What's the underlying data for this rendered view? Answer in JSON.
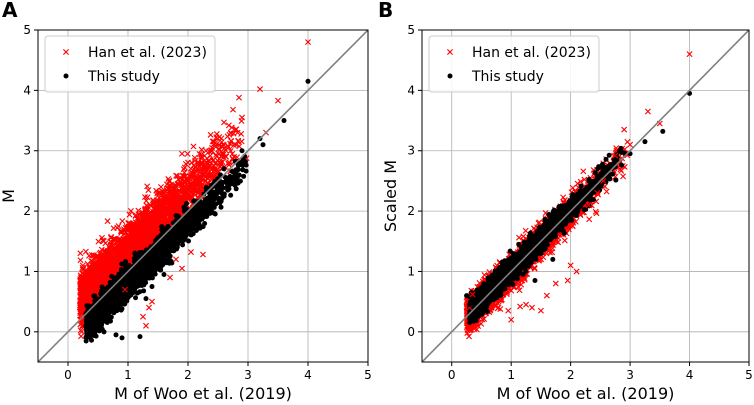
{
  "figure": {
    "panels": [
      "A",
      "B"
    ]
  },
  "chart_data": [
    {
      "panel": "A",
      "type": "scatter",
      "xlabel": "M of Woo et al. (2019)",
      "ylabel": "M",
      "xlim": [
        -0.5,
        5
      ],
      "ylim": [
        -0.5,
        5
      ],
      "xticks": [
        "0",
        "1",
        "2",
        "3",
        "4",
        "5"
      ],
      "yticks": [
        "0",
        "1",
        "2",
        "3",
        "4",
        "5"
      ],
      "grid": true,
      "reference_line": {
        "label": "1:1",
        "x": [
          -0.5,
          5
        ],
        "y": [
          -0.5,
          5
        ],
        "color": "#7f7f7f"
      },
      "legend": {
        "placement": "top-left",
        "entries": [
          "Han et al. (2023)",
          "This study"
        ]
      },
      "series": [
        {
          "name": "Han et al. (2023)",
          "marker": "x",
          "color": "#ff0000",
          "relation": {
            "slope": 1.0,
            "intercept": 0.35,
            "x_range": [
              0.2,
              3.0
            ],
            "scatter": 0.22
          },
          "points": [
            [
              4.0,
              4.8
            ],
            [
              3.2,
              4.02
            ],
            [
              3.5,
              3.83
            ],
            [
              2.85,
              3.88
            ],
            [
              2.75,
              3.68
            ],
            [
              2.9,
              3.55
            ],
            [
              3.3,
              3.3
            ],
            [
              2.6,
              3.47
            ],
            [
              2.3,
              3.0
            ],
            [
              1.9,
              2.95
            ],
            [
              1.55,
              2.4
            ],
            [
              1.8,
              1.2
            ],
            [
              1.9,
              1.05
            ],
            [
              2.05,
              1.32
            ],
            [
              2.25,
              1.28
            ],
            [
              1.7,
              0.9
            ],
            [
              1.35,
              0.4
            ],
            [
              1.25,
              0.25
            ],
            [
              1.3,
              0.1
            ],
            [
              1.4,
              0.5
            ],
            [
              0.95,
              0.7
            ],
            [
              0.25,
              0.68
            ],
            [
              0.2,
              0.52
            ]
          ]
        },
        {
          "name": "This study",
          "marker": "o",
          "color": "#000000",
          "relation": {
            "slope": 1.0,
            "intercept": -0.2,
            "x_range": [
              0.3,
              3.05
            ],
            "scatter": 0.12
          },
          "points": [
            [
              4.0,
              4.15
            ],
            [
              3.6,
              3.5
            ],
            [
              3.2,
              3.2
            ],
            [
              3.25,
              3.1
            ],
            [
              2.9,
              3.0
            ],
            [
              0.5,
              0.15
            ],
            [
              0.6,
              0.0
            ],
            [
              0.8,
              -0.05
            ],
            [
              0.9,
              -0.1
            ],
            [
              1.2,
              -0.08
            ],
            [
              1.3,
              0.55
            ],
            [
              1.6,
              0.95
            ],
            [
              1.4,
              0.75
            ],
            [
              0.4,
              0.2
            ]
          ]
        }
      ]
    },
    {
      "panel": "B",
      "type": "scatter",
      "xlabel": "M of Woo et al. (2019)",
      "ylabel": "Scaled M",
      "xlim": [
        -0.5,
        5
      ],
      "ylim": [
        -0.5,
        5
      ],
      "xticks": [
        "0",
        "1",
        "2",
        "3",
        "4",
        "5"
      ],
      "yticks": [
        "0",
        "1",
        "2",
        "3",
        "4",
        "5"
      ],
      "grid": true,
      "reference_line": {
        "label": "1:1",
        "x": [
          -0.5,
          5
        ],
        "y": [
          -0.5,
          5
        ],
        "color": "#7f7f7f"
      },
      "legend": {
        "placement": "top-left",
        "entries": [
          "Han et al. (2023)",
          "This study"
        ]
      },
      "series": [
        {
          "name": "Han et al. (2023)",
          "marker": "x",
          "color": "#ff0000",
          "relation": {
            "slope": 1.0,
            "intercept": 0.0,
            "x_range": [
              0.25,
              3.0
            ],
            "scatter": 0.14
          },
          "points": [
            [
              4.0,
              4.6
            ],
            [
              3.3,
              3.65
            ],
            [
              3.5,
              3.45
            ],
            [
              3.0,
              3.1
            ],
            [
              2.9,
              3.35
            ],
            [
              2.75,
              2.92
            ],
            [
              2.55,
              2.5
            ],
            [
              2.3,
              2.1
            ],
            [
              2.0,
              1.1
            ],
            [
              2.1,
              1.0
            ],
            [
              1.95,
              0.85
            ],
            [
              1.75,
              0.8
            ],
            [
              1.6,
              0.6
            ],
            [
              1.5,
              0.35
            ],
            [
              1.35,
              0.4
            ],
            [
              1.15,
              0.42
            ],
            [
              1.25,
              0.45
            ],
            [
              1.0,
              0.2
            ],
            [
              0.95,
              0.35
            ],
            [
              0.3,
              0.4
            ],
            [
              0.25,
              0.5
            ],
            [
              0.35,
              0.62
            ],
            [
              2.45,
              2.3
            ]
          ]
        },
        {
          "name": "This study",
          "marker": "o",
          "color": "#000000",
          "relation": {
            "slope": 1.0,
            "intercept": 0.03,
            "x_range": [
              0.3,
              2.95
            ],
            "scatter": 0.09
          },
          "points": [
            [
              4.0,
              3.95
            ],
            [
              3.55,
              3.32
            ],
            [
              3.25,
              3.15
            ],
            [
              3.0,
              2.95
            ],
            [
              0.25,
              0.6
            ],
            [
              0.3,
              0.45
            ],
            [
              0.55,
              0.42
            ],
            [
              1.2,
              0.95
            ],
            [
              1.4,
              0.85
            ],
            [
              1.7,
              1.2
            ],
            [
              0.5,
              0.35
            ]
          ]
        }
      ]
    }
  ]
}
